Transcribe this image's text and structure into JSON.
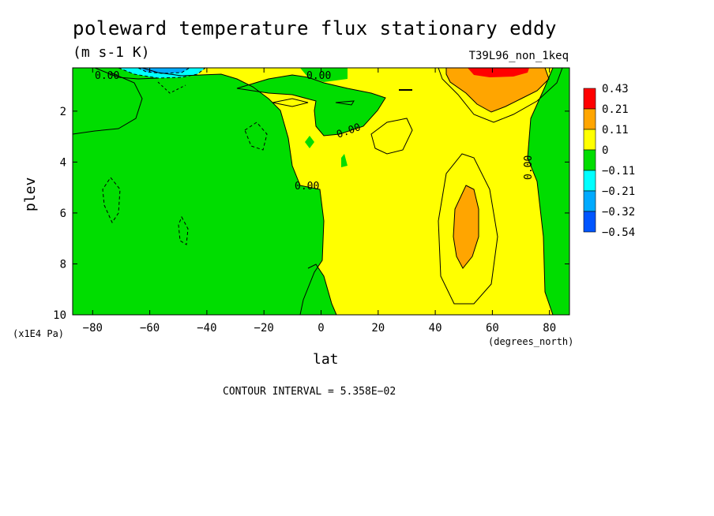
{
  "chart_data": {
    "type": "heatmap",
    "title": "poleward temperature flux stationary eddy",
    "units": "(m s-1 K)",
    "run_label": "T39L96_non_1keq",
    "xlabel": "lat",
    "xunits": "(degrees_north)",
    "ylabel": "plev",
    "yunits": "(x1E4 Pa)",
    "xlim": [
      -87,
      87
    ],
    "ylim": [
      10,
      0.3
    ],
    "x_ticks": [
      -80,
      -60,
      -40,
      -20,
      0,
      20,
      40,
      60,
      80
    ],
    "x_tick_labels": [
      "−80",
      "−60",
      "−40",
      "−20",
      "0",
      "20",
      "40",
      "60",
      "80"
    ],
    "y_ticks": [
      2,
      4,
      6,
      8,
      10
    ],
    "y_tick_labels": [
      "2",
      "4",
      "6",
      "8",
      "10"
    ],
    "contour_interval_text": "CONTOUR INTERVAL = 5.358E−02",
    "contour_labels": [
      "0.00",
      "0.00",
      "0.00",
      "0.00",
      "0.00"
    ],
    "legend": {
      "placement": "right",
      "levels": [
        "0.43",
        "0.21",
        "0.11",
        "0",
        "−0.11",
        "−0.21",
        "−0.32",
        "−0.54"
      ],
      "colors": [
        "#ff0000",
        "#ffa500",
        "#ffff00",
        "#00dd00",
        "#00ffff",
        "#00aaff",
        "#0055ff"
      ]
    },
    "fields": {
      "background_color": "#ffff00",
      "green_region_color": "#00dd00",
      "orange_region_color": "#ffa500",
      "red_region_color": "#ff0000",
      "cyan_region_color": "#00ffff",
      "blue_region_color": "#00aaff"
    }
  }
}
